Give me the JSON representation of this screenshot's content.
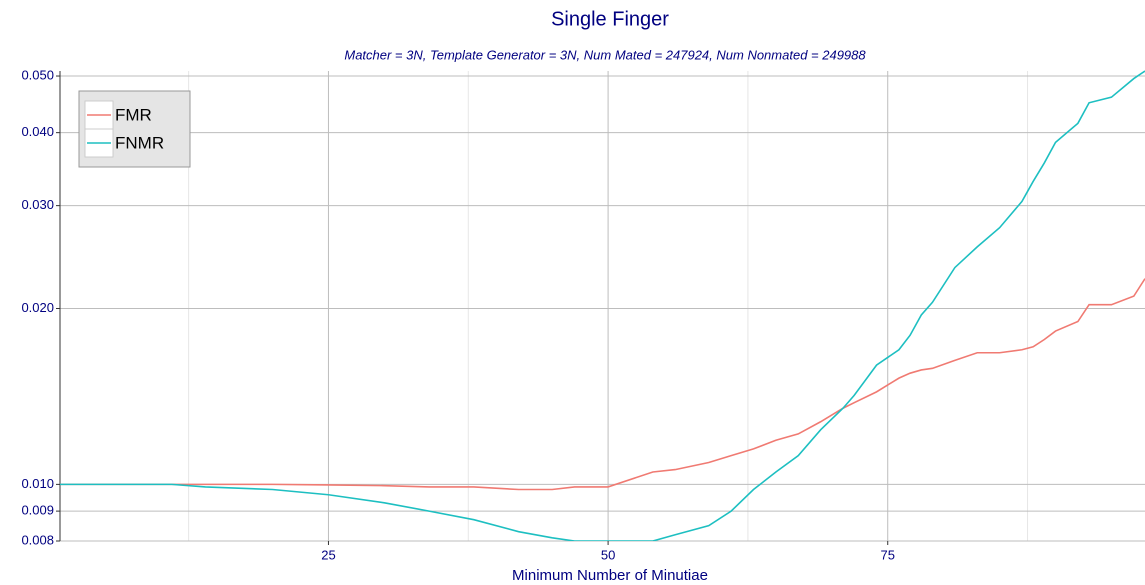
{
  "chart_data": {
    "type": "line",
    "title": "Single Finger",
    "subtitle": "Matcher = 3N,   Template Generator = 3N,   Num Mated = 247924,   Num Nonmated = 249988",
    "x_label": "Minimum Number of Minutiae",
    "x": [
      1,
      6,
      11,
      14,
      20,
      25,
      30,
      34,
      38,
      42,
      45,
      47,
      50,
      54,
      56,
      59,
      61,
      63,
      65,
      67,
      69,
      71,
      72,
      74,
      76,
      77,
      78,
      79,
      81,
      83,
      85,
      87,
      88,
      89,
      90,
      92,
      93,
      95,
      97,
      98
    ],
    "series": [
      {
        "name": "FMR",
        "color": "#f07a72",
        "values": [
          0.01,
          0.01,
          0.01,
          0.01,
          0.01,
          0.00998,
          0.00995,
          0.0099,
          0.0099,
          0.0098,
          0.0098,
          0.0099,
          0.0099,
          0.0105,
          0.0106,
          0.0109,
          0.0112,
          0.0115,
          0.0119,
          0.0122,
          0.0128,
          0.0135,
          0.0138,
          0.0144,
          0.0152,
          0.0155,
          0.0157,
          0.0158,
          0.0163,
          0.0168,
          0.0168,
          0.017,
          0.0172,
          0.0177,
          0.0183,
          0.019,
          0.0203,
          0.0203,
          0.021,
          0.0225
        ]
      },
      {
        "name": "FNMR",
        "color": "#1dbfc1",
        "values": [
          0.01,
          0.01,
          0.01,
          0.0099,
          0.0098,
          0.0096,
          0.0093,
          0.009,
          0.0087,
          0.0083,
          0.0081,
          0.008,
          0.008,
          0.008,
          0.0082,
          0.0085,
          0.009,
          0.0098,
          0.0105,
          0.0112,
          0.0124,
          0.0135,
          0.0142,
          0.016,
          0.017,
          0.018,
          0.0195,
          0.0205,
          0.0235,
          0.0255,
          0.0275,
          0.0305,
          0.033,
          0.0355,
          0.0385,
          0.0415,
          0.045,
          0.046,
          0.0495,
          0.051
        ]
      }
    ],
    "xlim": [
      1,
      98
    ],
    "xticks": [
      25,
      50,
      75
    ],
    "ylim": [
      0.008,
      0.051
    ],
    "log_y": true,
    "yticks": [
      0.008,
      0.009,
      {
        "value": 0.01,
        "label": "0.010"
      },
      {
        "value": 0.02,
        "label": "0.020"
      },
      {
        "value": 0.03,
        "label": "0.030"
      },
      {
        "value": 0.04,
        "label": "0.040"
      },
      {
        "value": 0.05,
        "label": "0.050"
      }
    ],
    "grid": true,
    "legend": "top-left"
  }
}
